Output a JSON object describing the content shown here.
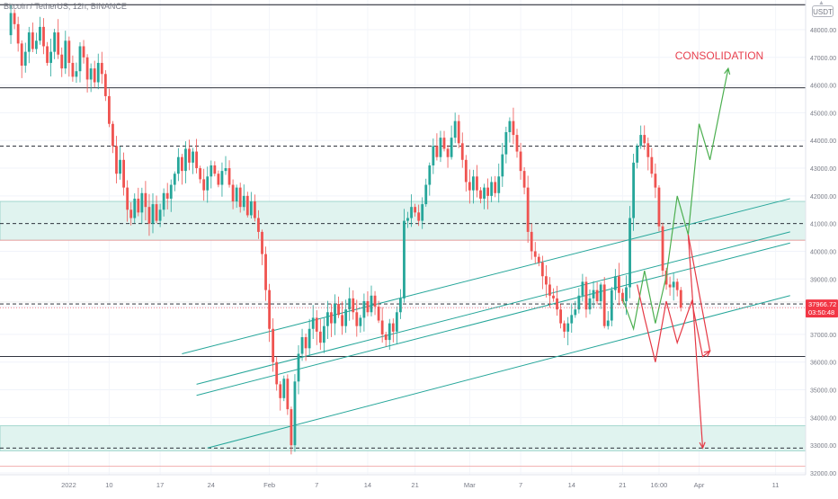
{
  "header": {
    "symbol": "Bitcoin / TetherUS, 12h, BINANCE",
    "currency": "USDT"
  },
  "annotation": {
    "text": "CONSOLIDATION",
    "color": "#e8414f"
  },
  "colors": {
    "up": "#26a69a",
    "down": "#ef5350",
    "zone_fill": "#e0f3ef",
    "zone_border": "#8fcfc4",
    "bull_path": "#4caf50",
    "bear_path": "#e53945",
    "channel": "#26a69a",
    "level": "#131722",
    "price_tag": "#f23645"
  },
  "chart_data": {
    "type": "candlestick",
    "title": "",
    "xlabel": "",
    "ylabel": "",
    "ylim": [
      32000,
      49200
    ],
    "x_ticks": [
      "2022",
      "10",
      "17",
      "24",
      "Feb",
      "7",
      "14",
      "21",
      "Mar",
      "7",
      "14",
      "21",
      "16:00",
      "Apr",
      "11"
    ],
    "y_ticks": [
      "48000.00",
      "47000.00",
      "46000.00",
      "45000.00",
      "44000.00",
      "43000.00",
      "42000.00",
      "41000.00",
      "40000.00",
      "39000.00",
      "38000.00",
      "37000.00",
      "36000.00",
      "35000.00",
      "34000.00",
      "33000.00",
      "32000.00"
    ],
    "last_price": {
      "price": "37966.72",
      "countdown": "03:50:48"
    },
    "candle_closes": [
      47800,
      48600,
      48200,
      47500,
      46700,
      47200,
      47900,
      47300,
      47600,
      48100,
      47400,
      46800,
      47200,
      47900,
      47100,
      46600,
      47600,
      46800,
      46300,
      46500,
      47400,
      47000,
      46200,
      46600,
      46100,
      46800,
      46400,
      45600,
      44600,
      43800,
      42800,
      43300,
      42300,
      41500,
      41200,
      41900,
      41400,
      42100,
      41600,
      41000,
      41700,
      41100,
      41500,
      42100,
      41900,
      42400,
      42800,
      43400,
      42900,
      43700,
      43200,
      43600,
      43000,
      42600,
      42200,
      42700,
      43100,
      42800,
      42400,
      42900,
      43000,
      42400,
      41800,
      42300,
      41600,
      42000,
      41300,
      41800,
      41200,
      40700,
      39900,
      38600,
      37200,
      36000,
      35200,
      34700,
      35400,
      34300,
      33000,
      35300,
      36300,
      36900,
      36500,
      37200,
      37600,
      37100,
      36700,
      37300,
      37800,
      37400,
      38100,
      37700,
      37300,
      37900,
      38300,
      37800,
      37300,
      37600,
      38200,
      37800,
      38400,
      38000,
      37500,
      37000,
      36800,
      37400,
      37100,
      37800,
      38300,
      41100,
      41200,
      41600,
      41400,
      41100,
      41700,
      42400,
      43100,
      43800,
      43400,
      44100,
      43700,
      43400,
      44100,
      44700,
      43900,
      43300,
      42500,
      42200,
      42700,
      42200,
      41900,
      42300,
      42000,
      42500,
      42100,
      42700,
      43500,
      44300,
      44700,
      44200,
      43600,
      42900,
      42300,
      40700,
      40000,
      39800,
      39600,
      39100,
      38800,
      38400,
      38300,
      37900,
      37400,
      37100,
      37400,
      37700,
      37900,
      38400,
      38900,
      37900,
      38300,
      38600,
      38200,
      38800,
      37300,
      37500,
      38600,
      39100,
      38500,
      38200,
      38700,
      41200,
      43200,
      43800,
      44200,
      43900,
      43400,
      42800,
      42300,
      40900,
      39300,
      38800,
      38700,
      38900,
      38600,
      37970
    ],
    "levels": [
      48900,
      45900,
      43800,
      41000,
      38100,
      36200,
      32900
    ],
    "zones": [
      [
        40400,
        41800
      ],
      [
        32800,
        33700
      ]
    ],
    "consolidation_band": {
      "low": 38300,
      "high": 40400
    },
    "bullish_path": [
      [
        169,
        38300
      ],
      [
        172,
        37200
      ],
      [
        175,
        39300
      ],
      [
        178,
        37400
      ],
      [
        181,
        39100
      ],
      [
        184,
        42000
      ],
      [
        187,
        40600
      ],
      [
        190,
        44600
      ],
      [
        193,
        43300
      ],
      [
        198,
        46600
      ]
    ],
    "bearish_path": [
      [
        173,
        38800
      ],
      [
        175,
        37600
      ],
      [
        178,
        36000
      ],
      [
        181,
        38200
      ],
      [
        184,
        36700
      ],
      [
        188,
        38200
      ],
      [
        191,
        36200
      ],
      [
        193,
        36400
      ],
      [
        187,
        40600
      ],
      [
        191,
        32900
      ]
    ]
  }
}
